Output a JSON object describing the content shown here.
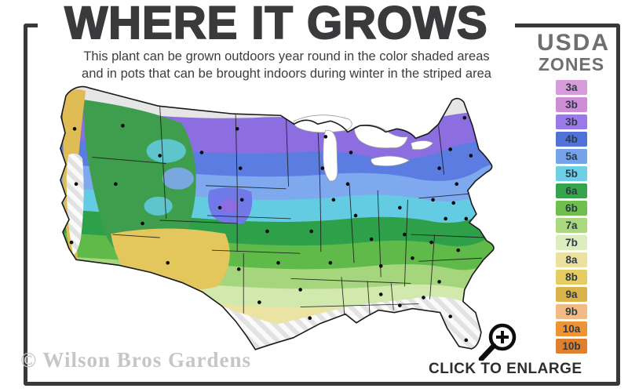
{
  "header": {
    "title": "WHERE IT GROWS",
    "subtitle_line1": "This plant can be grown outdoors year round in the color shaded areas",
    "subtitle_line2": "and in pots that can be brought indoors during winter in the striped area"
  },
  "legend": {
    "title_line1": "USDA",
    "title_line2": "ZONES",
    "zones": [
      {
        "label": "3a",
        "color": "#d79ddb"
      },
      {
        "label": "3b",
        "color": "#cd8ed5"
      },
      {
        "label": "3b",
        "color": "#9c79e8"
      },
      {
        "label": "4b",
        "color": "#4f73d8"
      },
      {
        "label": "5a",
        "color": "#74a2eb"
      },
      {
        "label": "5b",
        "color": "#6ed0e4"
      },
      {
        "label": "6a",
        "color": "#36a44b"
      },
      {
        "label": "6b",
        "color": "#70bf4c"
      },
      {
        "label": "7a",
        "color": "#a9d87e"
      },
      {
        "label": "7b",
        "color": "#dcedc0"
      },
      {
        "label": "8a",
        "color": "#ece1a0"
      },
      {
        "label": "8b",
        "color": "#e6cd62"
      },
      {
        "label": "9a",
        "color": "#dbb34d"
      },
      {
        "label": "9b",
        "color": "#f2bb86"
      },
      {
        "label": "10a",
        "color": "#ef9434"
      },
      {
        "label": "10b",
        "color": "#e07f2e"
      }
    ]
  },
  "map": {
    "striped_area_color": "#e2e2e2",
    "northern_gray_color": "#e6e6e6",
    "city_dot_color": "#0b0b0b",
    "state_line_color": "#141414"
  },
  "footer": {
    "enlarge_label": "CLICK TO ENLARGE",
    "watermark": "© Wilson Bros Gardens"
  },
  "colors": {
    "frame": "#38383a",
    "title_text": "#3a3a3c",
    "legend_title_text": "#6f6f6f"
  }
}
